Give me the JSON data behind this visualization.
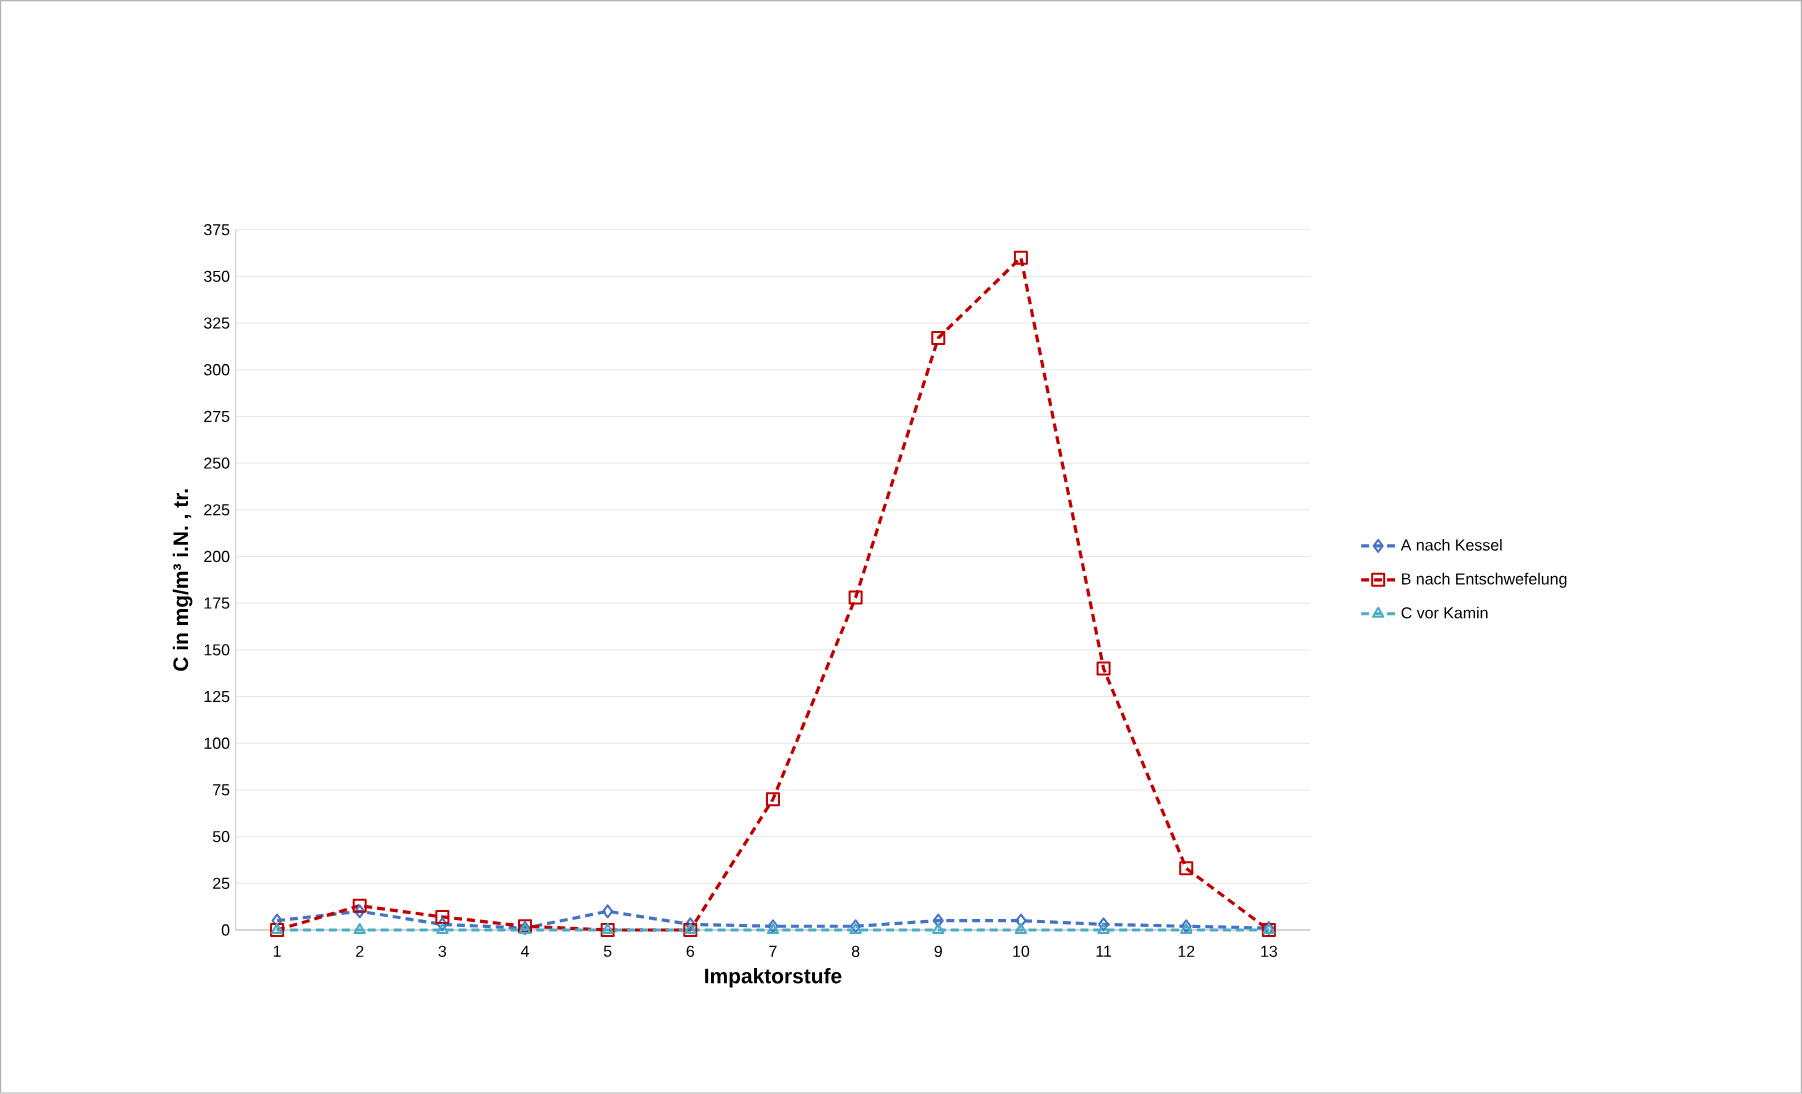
{
  "chart_data": {
    "type": "line",
    "xlabel": "Impaktorstufe",
    "ylabel": "C in mg/m³ i.N. , tr.",
    "categories": [
      "1",
      "2",
      "3",
      "4",
      "5",
      "6",
      "7",
      "8",
      "9",
      "10",
      "11",
      "12",
      "13"
    ],
    "series": [
      {
        "name": "A nach Kessel",
        "color": "#4472c4",
        "marker": "diamond",
        "values": [
          5,
          10,
          3,
          1,
          10,
          3,
          2,
          2,
          5,
          5,
          3,
          2,
          1
        ]
      },
      {
        "name": "B nach Entschwefelung",
        "color": "#c00000",
        "marker": "square",
        "values": [
          0,
          13,
          7,
          2,
          0,
          0,
          70,
          178,
          317,
          360,
          140,
          33,
          0
        ]
      },
      {
        "name": "C vor Kamin",
        "color": "#4bacc6",
        "marker": "triangle",
        "values": [
          0,
          0,
          0,
          0,
          0,
          0,
          0,
          0,
          0,
          0,
          0,
          0,
          0
        ]
      }
    ],
    "ylim": [
      0,
      375
    ],
    "yticks": [
      0,
      25,
      50,
      75,
      100,
      125,
      150,
      175,
      200,
      225,
      250,
      275,
      300,
      325,
      350,
      375
    ],
    "grid": "y",
    "legend": "right",
    "line_style": "dashed"
  }
}
